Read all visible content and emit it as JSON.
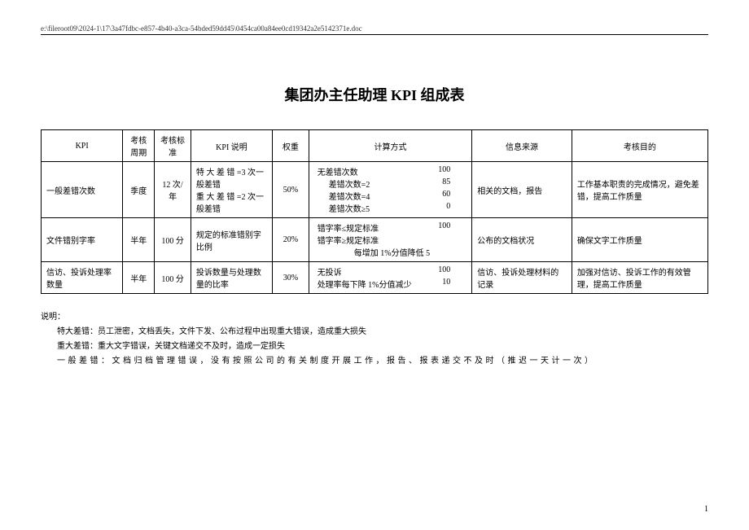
{
  "header": {
    "path": "e:\\fileroot09\\2024-1\\17\\3a47fdbc-e857-4b40-a3ca-54bded59dd45\\0454ca00a84ee0cd19342a2e5142371e.doc"
  },
  "title": {
    "prefix": "集团办主任助理 ",
    "latin": "KPI",
    "suffix": " 组成表"
  },
  "table": {
    "headers": [
      "KPI",
      "考核周期",
      "考核标准",
      "KPI 说明",
      "权重",
      "计算方式",
      "信息来源",
      "考核目的"
    ],
    "rows": [
      {
        "kpi": "一般差错次数",
        "period": "季度",
        "standard": "12 次/年",
        "desc": "特 大 差 错 =3 次一般差错\n重 大 差 错 =2 次一般差错",
        "weight": "50%",
        "calc": [
          {
            "label": "无差错次数",
            "value": "100"
          },
          {
            "label": "差错次数=2",
            "value": "85",
            "indent": true
          },
          {
            "label": "差错次数=4",
            "value": "60",
            "indent": true
          },
          {
            "label": "差错次数≥5",
            "value": "0",
            "indent": true
          }
        ],
        "source": "相关的文档，报告",
        "purpose": "工作基本职责的完成情况，避免差错，提高工作质量"
      },
      {
        "kpi": "文件错别字率",
        "period": "半年",
        "standard": "100 分",
        "desc": "规定的标准错别字比例",
        "weight": "20%",
        "calc": [
          {
            "label": "错字率≤规定标准",
            "value": "100"
          },
          {
            "label": "错字率≥规定标准",
            "value": ""
          },
          {
            "label": "每增加 1%分值降低 5",
            "value": "",
            "center": true
          }
        ],
        "source": "公布的文档状况",
        "purpose": "确保文字工作质量"
      },
      {
        "kpi": "信访、投诉处理率数量",
        "period": "半年",
        "standard": "100 分",
        "desc": "投诉数量与处理数量的比率",
        "weight": "30%",
        "calc": [
          {
            "label": "无投诉",
            "value": "100"
          },
          {
            "label": "处理率每下降 1%分值减少",
            "value": "10"
          }
        ],
        "source": "信访、投诉处理材料的记录",
        "purpose": "加强对信访、投诉工作的有效管理，提高工作质量"
      }
    ]
  },
  "notes": {
    "title": "说明：",
    "lines": [
      {
        "text": "特大差错：员工泄密，文档丢失，文件下发、公布过程中出现重大错误，造成重大损失",
        "spread": false
      },
      {
        "text": "重大差错：重大文字错误，关键文档递交不及时，造成一定损失",
        "spread": false
      },
      {
        "text": "一般差错：文档归档管理错误，没有按照公司的有关制度开展工作，报告、报表递交不及时（推迟一天计一次）",
        "spread": true
      }
    ]
  },
  "page_number": "1"
}
